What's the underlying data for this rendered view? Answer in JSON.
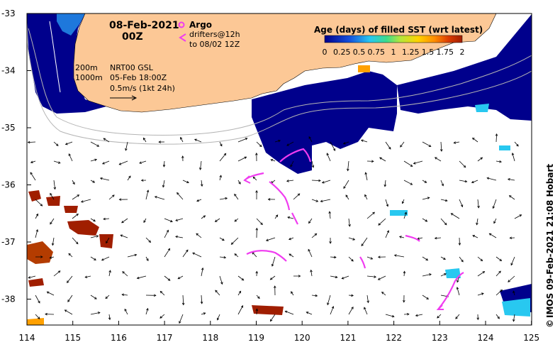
{
  "map": {
    "date": "08-Feb-2021",
    "hour": "00Z",
    "argo_label": "Argo",
    "drifter_line1": "drifters@12h",
    "drifter_line2": "to 08/02 12Z",
    "contour_200": "200m",
    "contour_1000": "1000m",
    "product": "NRT00 GSL",
    "product_time": "05-Feb 18:00Z",
    "scale_label": "0.5m/s (1kt 24h)",
    "colorbar_title": "Age (days) of filled SST (wrt latest)",
    "colorbar_ticks": [
      "0",
      "0.25",
      "0.5",
      "0.75",
      "1",
      "1.25",
      "1.5",
      "1.75",
      "2"
    ],
    "credit": "IMOS 09-Feb-2021 21:08 Hobart",
    "copyright_symbol": "©",
    "lat_labels": [
      "-33",
      "-34",
      "-35",
      "-36",
      "-37",
      "-38"
    ],
    "lon_labels": [
      "114",
      "115",
      "116",
      "117",
      "118",
      "119",
      "120",
      "121",
      "122",
      "123",
      "124",
      "125"
    ],
    "colors": {
      "land": "#fcc896",
      "sst_fresh": "#00008c",
      "sst_mid": "#1e78dc",
      "sst_cyan": "#28c8f0",
      "sst_old": "#a01e00",
      "sst_orange": "#ffa000",
      "drifter": "#f03cf0",
      "contour": "#b4b4b4",
      "arrow": "#000000"
    }
  }
}
